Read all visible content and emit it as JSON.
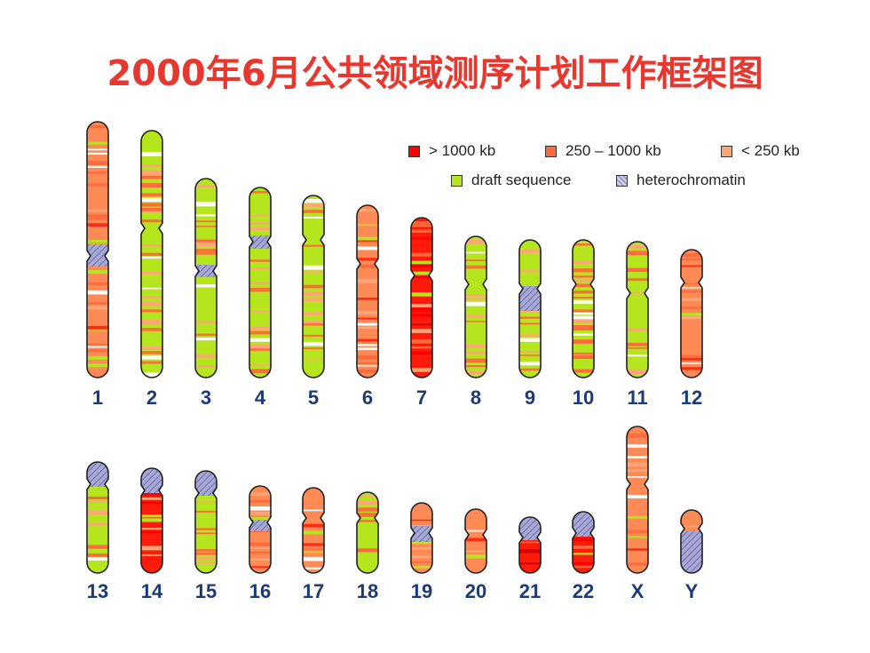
{
  "title": "2000年6月公共领域测序计划工作框架图",
  "legend": [
    {
      "label": "> 1000 kb",
      "color": "#ff0000"
    },
    {
      "label": "250 – 1000 kb",
      "color": "#ff6b3d"
    },
    {
      "label": "< 250 kb",
      "color": "#ffa577"
    },
    {
      "label": "draft sequence",
      "color": "#b5e61d"
    },
    {
      "label": "heterochromatin",
      "color": "#9a9acb"
    }
  ],
  "chromosomes": [
    {
      "label": "1"
    },
    {
      "label": "2"
    },
    {
      "label": "3"
    },
    {
      "label": "4"
    },
    {
      "label": "5"
    },
    {
      "label": "6"
    },
    {
      "label": "7"
    },
    {
      "label": "8"
    },
    {
      "label": "9"
    },
    {
      "label": "10"
    },
    {
      "label": "11"
    },
    {
      "label": "12"
    },
    {
      "label": "13"
    },
    {
      "label": "14"
    },
    {
      "label": "15"
    },
    {
      "label": "16"
    },
    {
      "label": "17"
    },
    {
      "label": "18"
    },
    {
      "label": "19"
    },
    {
      "label": "20"
    },
    {
      "label": "21"
    },
    {
      "label": "22"
    },
    {
      "label": "X"
    },
    {
      "label": "Y"
    }
  ]
}
